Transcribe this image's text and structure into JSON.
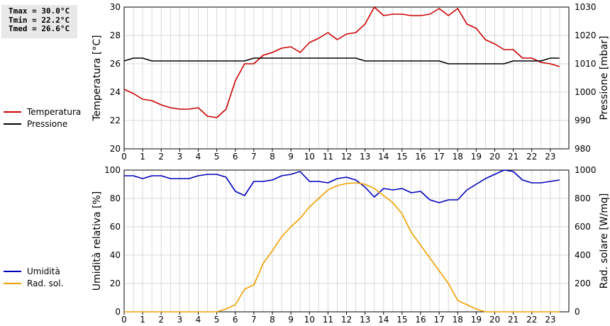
{
  "stats": {
    "tmax": "Tmax = 30.0°C",
    "tmin": "Tmin = 22.2°C",
    "tmed": "Tmed = 26.6°C"
  },
  "chart_data": [
    {
      "type": "line",
      "xlabel": "",
      "ylabel": "Temperatura [°C]",
      "y2label": "Pressione [mbar]",
      "xlim": [
        0,
        24
      ],
      "ylim": [
        20,
        30
      ],
      "y2lim": [
        980,
        1030
      ],
      "xticks": [
        "0",
        "1",
        "2",
        "3",
        "4",
        "5",
        "6",
        "7",
        "8",
        "9",
        "10",
        "11",
        "12",
        "13",
        "14",
        "15",
        "16",
        "17",
        "18",
        "19",
        "20",
        "21",
        "22",
        "23"
      ],
      "yticks": [
        "20",
        "22",
        "24",
        "26",
        "28",
        "30"
      ],
      "y2ticks": [
        "980",
        "990",
        "1000",
        "1010",
        "1020",
        "1030"
      ],
      "grid": true,
      "legend_position": "left",
      "series": [
        {
          "name": "Temperatura",
          "color": "#cc0000",
          "axis": "left",
          "x": [
            0,
            0.5,
            1,
            1.5,
            2,
            2.5,
            3,
            3.5,
            4,
            4.5,
            5,
            5.5,
            6,
            6.5,
            7,
            7.5,
            8,
            8.5,
            9,
            9.5,
            10,
            10.5,
            11,
            11.5,
            12,
            12.5,
            13,
            13.5,
            14,
            14.5,
            15,
            15.5,
            16,
            16.5,
            17,
            17.5,
            18,
            18.5,
            19,
            19.5,
            20,
            20.5,
            21,
            21.5,
            22,
            22.5,
            23,
            23.5
          ],
          "values": [
            24.2,
            23.9,
            23.5,
            23.4,
            23.1,
            22.9,
            22.8,
            22.8,
            22.9,
            22.3,
            22.2,
            22.8,
            24.8,
            26.0,
            26.0,
            26.6,
            26.8,
            27.1,
            27.2,
            26.8,
            27.5,
            27.8,
            28.2,
            27.7,
            28.1,
            28.2,
            28.8,
            30.0,
            29.4,
            29.5,
            29.5,
            29.4,
            29.4,
            29.5,
            29.9,
            29.4,
            29.9,
            28.8,
            28.5,
            27.7,
            27.4,
            27.0,
            27.0,
            26.4,
            26.4,
            26.1,
            26.0,
            25.8
          ]
        },
        {
          "name": "Pressione",
          "color": "#000000",
          "axis": "right",
          "x": [
            0,
            0.5,
            1,
            1.5,
            2,
            2.5,
            3,
            3.5,
            4,
            4.5,
            5,
            5.5,
            6,
            6.5,
            7,
            7.5,
            8,
            8.5,
            9,
            9.5,
            10,
            10.5,
            11,
            11.5,
            12,
            12.5,
            13,
            13.5,
            14,
            14.5,
            15,
            15.5,
            16,
            16.5,
            17,
            17.5,
            18,
            18.5,
            19,
            19.5,
            20,
            20.5,
            21,
            21.5,
            22,
            22.5,
            23,
            23.5
          ],
          "values": [
            1011,
            1012,
            1012,
            1011,
            1011,
            1011,
            1011,
            1011,
            1011,
            1011,
            1011,
            1011,
            1011,
            1011,
            1012,
            1012,
            1012,
            1012,
            1012,
            1012,
            1012,
            1012,
            1012,
            1012,
            1012,
            1012,
            1011,
            1011,
            1011,
            1011,
            1011,
            1011,
            1011,
            1011,
            1011,
            1010,
            1010,
            1010,
            1010,
            1010,
            1010,
            1010,
            1011,
            1011,
            1011,
            1011,
            1012,
            1012
          ]
        }
      ]
    },
    {
      "type": "line",
      "xlabel": "",
      "ylabel": "Umidità relativa [%]",
      "y2label": "Rad. solare [W/mq]",
      "xlim": [
        0,
        24
      ],
      "ylim": [
        0,
        100
      ],
      "y2lim": [
        0,
        1000
      ],
      "xticks": [
        "0",
        "1",
        "2",
        "3",
        "4",
        "5",
        "6",
        "7",
        "8",
        "9",
        "10",
        "11",
        "12",
        "13",
        "14",
        "15",
        "16",
        "17",
        "18",
        "19",
        "20",
        "21",
        "22",
        "23"
      ],
      "yticks": [
        "0",
        "20",
        "40",
        "60",
        "80",
        "100"
      ],
      "y2ticks": [
        "0",
        "200",
        "400",
        "600",
        "800",
        "1000"
      ],
      "grid": true,
      "legend_position": "left",
      "series": [
        {
          "name": "Umidità",
          "color": "#0000bb",
          "axis": "left",
          "x": [
            0,
            0.5,
            1,
            1.5,
            2,
            2.5,
            3,
            3.5,
            4,
            4.5,
            5,
            5.5,
            6,
            6.5,
            7,
            7.5,
            8,
            8.5,
            9,
            9.5,
            10,
            10.5,
            11,
            11.5,
            12,
            12.5,
            13,
            13.5,
            14,
            14.5,
            15,
            15.5,
            16,
            16.5,
            17,
            17.5,
            18,
            18.5,
            19,
            19.5,
            20,
            20.5,
            21,
            21.5,
            22,
            22.5,
            23,
            23.5
          ],
          "values": [
            96,
            96,
            94,
            96,
            96,
            94,
            94,
            94,
            96,
            97,
            97,
            95,
            85,
            82,
            92,
            92,
            93,
            96,
            97,
            99,
            92,
            92,
            91,
            94,
            95,
            93,
            88,
            81,
            87,
            86,
            87,
            84,
            85,
            79,
            77,
            79,
            79,
            86,
            90,
            94,
            97,
            100,
            99,
            93,
            91,
            91,
            92,
            93
          ]
        },
        {
          "name": "Rad. sol.",
          "color": "#f0a000",
          "axis": "right",
          "x": [
            0,
            0.5,
            1,
            1.5,
            2,
            2.5,
            3,
            3.5,
            4,
            4.5,
            5,
            5.5,
            6,
            6.5,
            7,
            7.5,
            8,
            8.5,
            9,
            9.5,
            10,
            10.5,
            11,
            11.5,
            12,
            12.5,
            13,
            13.5,
            14,
            14.5,
            15,
            15.5,
            16,
            16.5,
            17,
            17.5,
            18,
            18.5,
            19,
            19.5,
            20,
            20.5,
            21,
            21.5,
            22,
            22.5,
            23,
            23.5
          ],
          "values": [
            0,
            0,
            0,
            0,
            0,
            0,
            0,
            0,
            0,
            0,
            0,
            20,
            50,
            160,
            190,
            340,
            430,
            530,
            600,
            660,
            740,
            800,
            860,
            890,
            905,
            910,
            900,
            870,
            820,
            770,
            690,
            560,
            470,
            380,
            290,
            200,
            80,
            50,
            20,
            0,
            0,
            0,
            0,
            0,
            0,
            0,
            0,
            0
          ]
        }
      ]
    }
  ]
}
